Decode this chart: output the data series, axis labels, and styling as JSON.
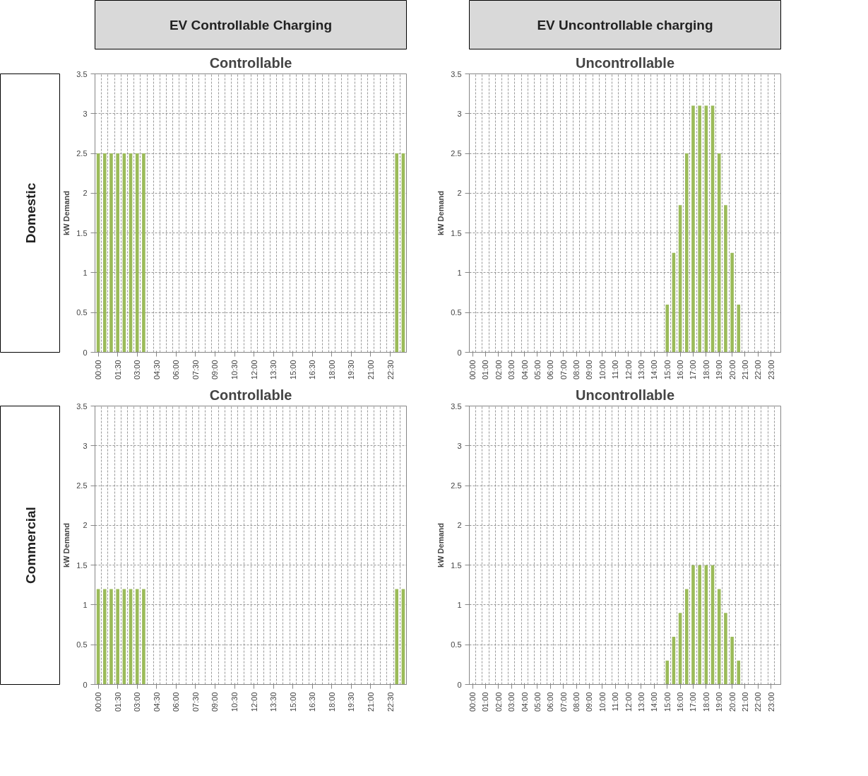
{
  "chart_data": [
    {
      "type": "bar",
      "title": "Controllable",
      "ylabel": "kW Demand",
      "annotations": [
        "EV Controllable Charging",
        "Domestic"
      ],
      "color": "#9bbb59",
      "grid": true,
      "ylim": [
        0,
        3.5
      ],
      "yticks": [
        0,
        0.5,
        1,
        1.5,
        2,
        2.5,
        3,
        3.5
      ],
      "categories": [
        "00:00",
        null,
        null,
        "01:30",
        null,
        null,
        "03:00",
        null,
        null,
        "04:30",
        null,
        null,
        "06:00",
        null,
        null,
        "07:30",
        null,
        null,
        "09:00",
        null,
        null,
        "10:30",
        null,
        null,
        "12:00",
        null,
        null,
        "13:30",
        null,
        null,
        "15:00",
        null,
        null,
        "16:30",
        null,
        null,
        "18:00",
        null,
        null,
        "19:30",
        null,
        null,
        "21:00",
        null,
        null,
        "22:30",
        null,
        null
      ],
      "values": [
        2.5,
        2.5,
        2.5,
        2.5,
        2.5,
        2.5,
        2.5,
        2.5,
        0,
        0,
        0,
        0,
        0,
        0,
        0,
        0,
        0,
        0,
        0,
        0,
        0,
        0,
        0,
        0,
        0,
        0,
        0,
        0,
        0,
        0,
        0,
        0,
        0,
        0,
        0,
        0,
        0,
        0,
        0,
        0,
        0,
        0,
        0,
        0,
        0,
        0,
        2.5,
        2.5
      ]
    },
    {
      "type": "bar",
      "title": "Uncontrollable",
      "ylabel": "kW Demand",
      "annotations": [
        "EV Uncontrollable charging"
      ],
      "color": "#9bbb59",
      "grid": true,
      "ylim": [
        0,
        3.5
      ],
      "yticks": [
        0,
        0.5,
        1,
        1.5,
        2,
        2.5,
        3,
        3.5
      ],
      "categories": [
        "00:00",
        null,
        "01:00",
        null,
        "02:00",
        null,
        "03:00",
        null,
        "04:00",
        null,
        "05:00",
        null,
        "06:00",
        null,
        "07:00",
        null,
        "08:00",
        null,
        "09:00",
        null,
        "10:00",
        null,
        "11:00",
        null,
        "12:00",
        null,
        "13:00",
        null,
        "14:00",
        null,
        "15:00",
        null,
        "16:00",
        null,
        "17:00",
        null,
        "18:00",
        null,
        "19:00",
        null,
        "20:00",
        null,
        "21:00",
        null,
        "22:00",
        null,
        "23:00",
        null
      ],
      "values": [
        0,
        0,
        0,
        0,
        0,
        0,
        0,
        0,
        0,
        0,
        0,
        0,
        0,
        0,
        0,
        0,
        0,
        0,
        0,
        0,
        0,
        0,
        0,
        0,
        0,
        0,
        0,
        0,
        0,
        0,
        0.6,
        1.25,
        1.85,
        2.5,
        3.1,
        3.1,
        3.1,
        3.1,
        2.5,
        1.85,
        1.25,
        0.6,
        0,
        0,
        0,
        0,
        0,
        0
      ]
    },
    {
      "type": "bar",
      "title": "Controllable",
      "ylabel": "kW Demand",
      "annotations": [
        "Commercial"
      ],
      "color": "#9bbb59",
      "grid": true,
      "ylim": [
        0,
        3.5
      ],
      "yticks": [
        0,
        0.5,
        1,
        1.5,
        2,
        2.5,
        3,
        3.5
      ],
      "categories": [
        "00:00",
        null,
        null,
        "01:30",
        null,
        null,
        "03:00",
        null,
        null,
        "04:30",
        null,
        null,
        "06:00",
        null,
        null,
        "07:30",
        null,
        null,
        "09:00",
        null,
        null,
        "10:30",
        null,
        null,
        "12:00",
        null,
        null,
        "13:30",
        null,
        null,
        "15:00",
        null,
        null,
        "16:30",
        null,
        null,
        "18:00",
        null,
        null,
        "19:30",
        null,
        null,
        "21:00",
        null,
        null,
        "22:30",
        null,
        null
      ],
      "values": [
        1.2,
        1.2,
        1.2,
        1.2,
        1.2,
        1.2,
        1.2,
        1.2,
        0,
        0,
        0,
        0,
        0,
        0,
        0,
        0,
        0,
        0,
        0,
        0,
        0,
        0,
        0,
        0,
        0,
        0,
        0,
        0,
        0,
        0,
        0,
        0,
        0,
        0,
        0,
        0,
        0,
        0,
        0,
        0,
        0,
        0,
        0,
        0,
        0,
        0,
        1.2,
        1.2
      ]
    },
    {
      "type": "bar",
      "title": "Uncontrollable",
      "ylabel": "kW Demand",
      "color": "#9bbb59",
      "grid": true,
      "ylim": [
        0,
        3.5
      ],
      "yticks": [
        0,
        0.5,
        1,
        1.5,
        2,
        2.5,
        3,
        3.5
      ],
      "categories": [
        "00:00",
        null,
        "01:00",
        null,
        "02:00",
        null,
        "03:00",
        null,
        "04:00",
        null,
        "05:00",
        null,
        "06:00",
        null,
        "07:00",
        null,
        "08:00",
        null,
        "09:00",
        null,
        "10:00",
        null,
        "11:00",
        null,
        "12:00",
        null,
        "13:00",
        null,
        "14:00",
        null,
        "15:00",
        null,
        "16:00",
        null,
        "17:00",
        null,
        "18:00",
        null,
        "19:00",
        null,
        "20:00",
        null,
        "21:00",
        null,
        "22:00",
        null,
        "23:00",
        null
      ],
      "values": [
        0,
        0,
        0,
        0,
        0,
        0,
        0,
        0,
        0,
        0,
        0,
        0,
        0,
        0,
        0,
        0,
        0,
        0,
        0,
        0,
        0,
        0,
        0,
        0,
        0,
        0,
        0,
        0,
        0,
        0,
        0.3,
        0.6,
        0.9,
        1.2,
        1.5,
        1.5,
        1.5,
        1.5,
        1.2,
        0.9,
        0.6,
        0.3,
        0,
        0,
        0,
        0,
        0,
        0
      ]
    }
  ]
}
